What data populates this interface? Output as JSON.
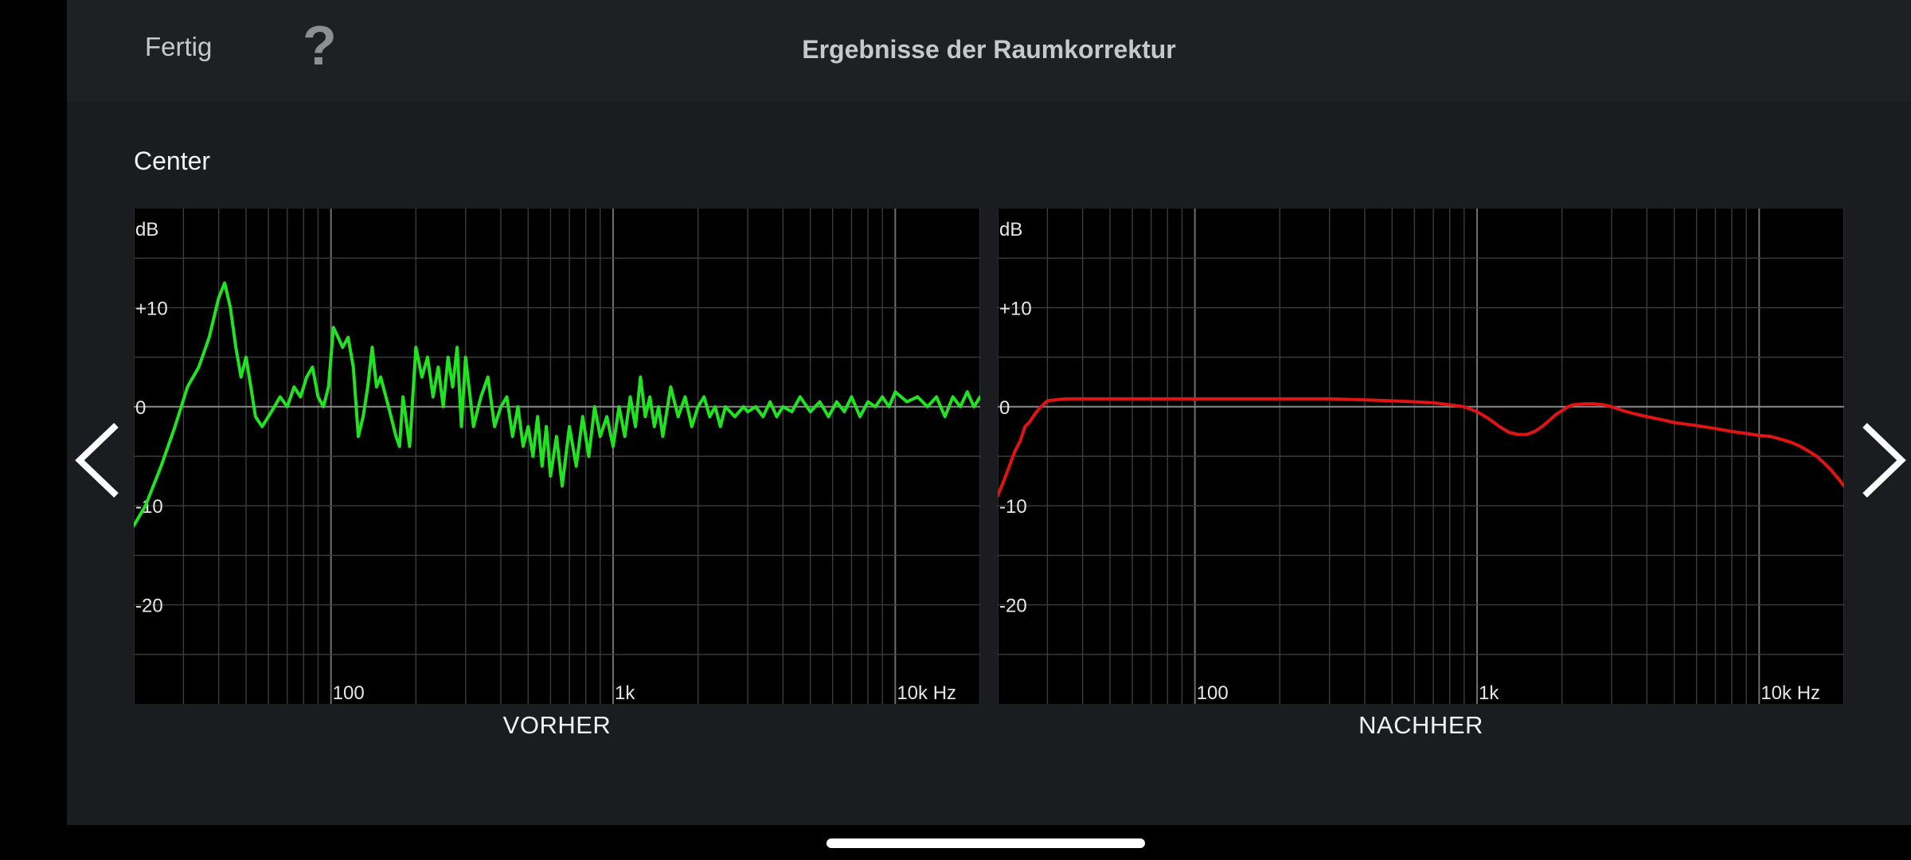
{
  "header": {
    "done_label": "Fertig",
    "help_label": "?",
    "title": "Ergebnisse der Raumkorrektur"
  },
  "channel_name": "Center",
  "icons": {
    "prev": "chevron-left-icon",
    "next": "chevron-right-icon"
  },
  "colors": {
    "before_curve": "#22e322",
    "after_curve": "#e01414",
    "background": "#1b1c20"
  },
  "chart_data": [
    {
      "type": "line",
      "title": "",
      "caption": "VORHER",
      "ylabel": "dB",
      "xlabel": "",
      "x_scale": "log",
      "xlim": [
        20,
        20000
      ],
      "ylim": [
        -30,
        20
      ],
      "y_ticks": [
        {
          "value": 10,
          "label": "+10"
        },
        {
          "value": 0,
          "label": "0"
        },
        {
          "value": -10,
          "label": "-10"
        },
        {
          "value": -20,
          "label": "-20"
        }
      ],
      "x_ticks": [
        {
          "value": 100,
          "label": "100"
        },
        {
          "value": 1000,
          "label": "1k"
        },
        {
          "value": 10000,
          "label": "10k Hz"
        }
      ],
      "grid": true,
      "series": [
        {
          "color": "#22e322",
          "x": [
            20,
            22,
            25,
            28,
            31,
            34,
            37,
            40,
            42,
            44,
            46,
            48,
            50,
            52,
            54,
            57,
            60,
            63,
            66,
            70,
            74,
            78,
            82,
            86,
            90,
            94,
            98,
            102,
            106,
            110,
            115,
            120,
            125,
            130,
            135,
            140,
            145,
            150,
            160,
            170,
            175,
            180,
            190,
            200,
            210,
            220,
            230,
            240,
            250,
            260,
            270,
            280,
            290,
            300,
            320,
            340,
            360,
            380,
            400,
            420,
            440,
            460,
            480,
            500,
            520,
            540,
            560,
            580,
            600,
            630,
            660,
            700,
            740,
            780,
            820,
            860,
            900,
            950,
            1000,
            1050,
            1100,
            1150,
            1200,
            1250,
            1300,
            1350,
            1400,
            1450,
            1500,
            1600,
            1700,
            1800,
            1900,
            2000,
            2100,
            2200,
            2300,
            2400,
            2500,
            2700,
            2900,
            3000,
            3200,
            3400,
            3600,
            3800,
            4000,
            4300,
            4600,
            5000,
            5400,
            5800,
            6200,
            6600,
            7000,
            7500,
            8000,
            8500,
            9000,
            9500,
            10000,
            11000,
            12000,
            13000,
            14000,
            15000,
            16000,
            17000,
            18000,
            19000,
            20000
          ],
          "y": [
            -12,
            -10,
            -6,
            -2,
            2,
            4,
            7,
            11,
            12.5,
            10,
            6,
            3,
            5,
            2,
            -1,
            -2,
            -1,
            0,
            1,
            0,
            2,
            1,
            3,
            4,
            1,
            0,
            2,
            8,
            7,
            6,
            7,
            4,
            -3,
            -1,
            2,
            6,
            2,
            3,
            0,
            -3,
            -4,
            1,
            -4,
            6,
            3,
            5,
            1,
            4,
            0,
            5,
            2,
            6,
            -2,
            5,
            -2,
            1,
            3,
            -2,
            0,
            1,
            -3,
            0,
            -4,
            -2,
            -5,
            -1,
            -6,
            -2,
            -7,
            -3,
            -8,
            -2,
            -6,
            -1,
            -5,
            0,
            -3,
            -1,
            -4,
            0,
            -3,
            1,
            -2,
            3,
            -1,
            1,
            -2,
            0,
            -3,
            2,
            -1,
            1,
            -2,
            0,
            1,
            -1,
            0,
            -2,
            0,
            -1,
            0,
            -0.5,
            0,
            -1,
            0.5,
            -1,
            0,
            -0.5,
            1,
            -0.5,
            0.5,
            -1,
            0.5,
            -0.5,
            1,
            -1,
            0.5,
            0,
            1,
            0,
            1.5,
            0.5,
            1,
            0,
            1,
            -1,
            1,
            0,
            1.5,
            0,
            1
          ]
        }
      ]
    },
    {
      "type": "line",
      "title": "",
      "caption": "NACHHER",
      "ylabel": "dB",
      "xlabel": "",
      "x_scale": "log",
      "xlim": [
        20,
        20000
      ],
      "ylim": [
        -30,
        20
      ],
      "y_ticks": [
        {
          "value": 10,
          "label": "+10"
        },
        {
          "value": 0,
          "label": "0"
        },
        {
          "value": -10,
          "label": "-10"
        },
        {
          "value": -20,
          "label": "-20"
        }
      ],
      "x_ticks": [
        {
          "value": 100,
          "label": "100"
        },
        {
          "value": 1000,
          "label": "1k"
        },
        {
          "value": 10000,
          "label": "10k Hz"
        }
      ],
      "grid": true,
      "series": [
        {
          "color": "#e01414",
          "x": [
            20,
            21,
            22,
            23,
            24,
            25,
            26,
            27,
            28,
            30,
            32,
            35,
            40,
            50,
            60,
            80,
            100,
            130,
            170,
            200,
            250,
            300,
            400,
            500,
            600,
            700,
            800,
            900,
            1000,
            1100,
            1200,
            1300,
            1400,
            1500,
            1600,
            1700,
            1800,
            1900,
            2000,
            2100,
            2200,
            2400,
            2600,
            2800,
            3000,
            3300,
            3600,
            4000,
            4500,
            5000,
            6000,
            7000,
            8000,
            9000,
            10000,
            11000,
            12000,
            13000,
            14000,
            15000,
            16000,
            17000,
            18000,
            19000,
            20000
          ],
          "y": [
            -9,
            -7.5,
            -6,
            -4.5,
            -3.5,
            -2,
            -1.5,
            -0.8,
            -0.2,
            0.6,
            0.7,
            0.8,
            0.8,
            0.8,
            0.8,
            0.8,
            0.8,
            0.8,
            0.8,
            0.8,
            0.8,
            0.8,
            0.7,
            0.6,
            0.5,
            0.4,
            0.2,
            0,
            -0.5,
            -1.2,
            -2,
            -2.6,
            -2.8,
            -2.8,
            -2.5,
            -2,
            -1.4,
            -0.8,
            -0.4,
            0,
            0.2,
            0.3,
            0.3,
            0.2,
            0,
            -0.4,
            -0.7,
            -1,
            -1.3,
            -1.6,
            -1.9,
            -2.2,
            -2.5,
            -2.7,
            -2.9,
            -3,
            -3.3,
            -3.6,
            -4,
            -4.5,
            -5,
            -5.7,
            -6.4,
            -7.2,
            -8
          ]
        }
      ]
    }
  ]
}
